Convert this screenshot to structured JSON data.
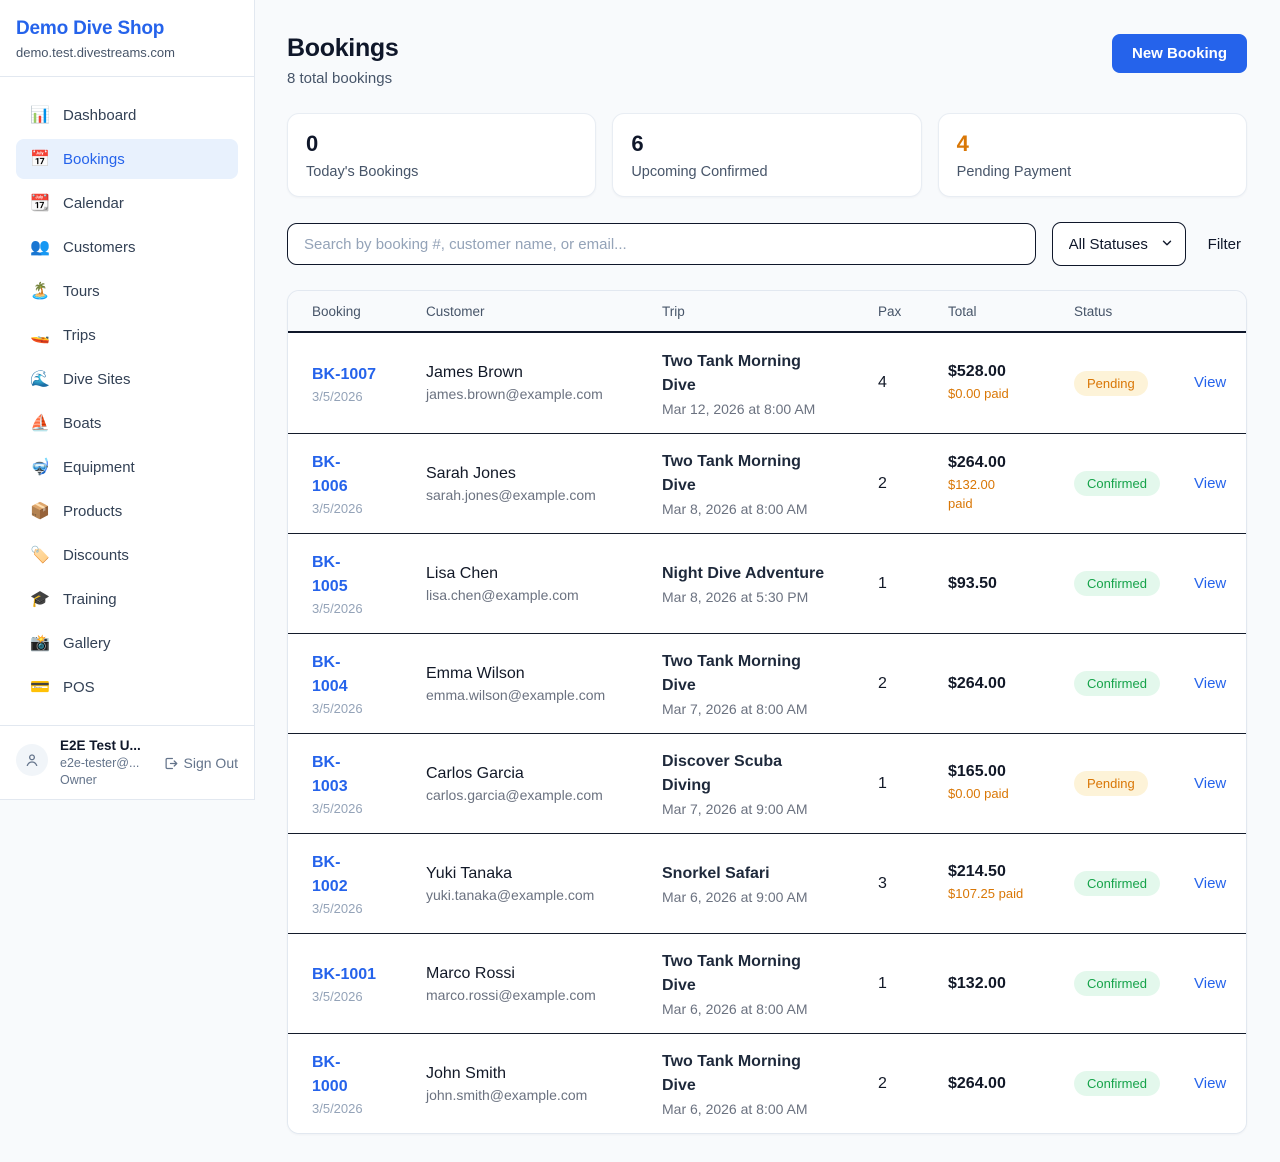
{
  "sidebar": {
    "shop_name": "Demo Dive Shop",
    "domain": "demo.test.divestreams.com",
    "items": [
      {
        "label": "Dashboard",
        "icon": "📊",
        "icon_name": "dashboard-icon",
        "active": false
      },
      {
        "label": "Bookings",
        "icon": "📅",
        "icon_name": "bookings-icon",
        "active": true
      },
      {
        "label": "Calendar",
        "icon": "📆",
        "icon_name": "calendar-icon",
        "active": false
      },
      {
        "label": "Customers",
        "icon": "👥",
        "icon_name": "customers-icon",
        "active": false
      },
      {
        "label": "Tours",
        "icon": "🏝️",
        "icon_name": "tours-icon",
        "active": false
      },
      {
        "label": "Trips",
        "icon": "🚤",
        "icon_name": "trips-icon",
        "active": false
      },
      {
        "label": "Dive Sites",
        "icon": "🌊",
        "icon_name": "dive-sites-icon",
        "active": false
      },
      {
        "label": "Boats",
        "icon": "⛵",
        "icon_name": "boats-icon",
        "active": false
      },
      {
        "label": "Equipment",
        "icon": "🤿",
        "icon_name": "equipment-icon",
        "active": false
      },
      {
        "label": "Products",
        "icon": "📦",
        "icon_name": "products-icon",
        "active": false
      },
      {
        "label": "Discounts",
        "icon": "🏷️",
        "icon_name": "discounts-icon",
        "active": false
      },
      {
        "label": "Training",
        "icon": "🎓",
        "icon_name": "training-icon",
        "active": false
      },
      {
        "label": "Gallery",
        "icon": "📸",
        "icon_name": "gallery-icon",
        "active": false
      },
      {
        "label": "POS",
        "icon": "💳",
        "icon_name": "pos-icon",
        "active": false
      }
    ],
    "user": {
      "name": "E2E Test U...",
      "email": "e2e-tester@...",
      "role": "Owner",
      "sign_out": "Sign Out"
    }
  },
  "header": {
    "title": "Bookings",
    "subtitle": "8 total bookings",
    "new_booking": "New Booking"
  },
  "stats": [
    {
      "value": "0",
      "label": "Today's Bookings"
    },
    {
      "value": "6",
      "label": "Upcoming Confirmed"
    },
    {
      "value": "4",
      "label": "Pending Payment"
    }
  ],
  "controls": {
    "search_placeholder": "Search by booking #, customer name, or email...",
    "status_filter": "All Statuses",
    "filter_label": "Filter"
  },
  "table": {
    "columns": [
      "Booking",
      "Customer",
      "Trip",
      "Pax",
      "Total",
      "Status"
    ],
    "view_label": "View",
    "rows": [
      {
        "id": "BK-1007",
        "date": "3/5/2026",
        "customer": "James Brown",
        "email": "james.brown@example.com",
        "trip": "Two Tank Morning\nDive",
        "trip_time": "Mar 12, 2026 at 8:00 AM",
        "pax": "4",
        "total": "$528.00",
        "paid": "$0.00 paid",
        "status": "Pending"
      },
      {
        "id": "BK-\n1006",
        "date": "3/5/2026",
        "customer": "Sarah Jones",
        "email": "sarah.jones@example.com",
        "trip": "Two Tank Morning\nDive",
        "trip_time": "Mar 8, 2026 at 8:00 AM",
        "pax": "2",
        "total": "$264.00",
        "paid": "$132.00\npaid",
        "status": "Confirmed"
      },
      {
        "id": "BK-\n1005",
        "date": "3/5/2026",
        "customer": "Lisa Chen",
        "email": "lisa.chen@example.com",
        "trip": "Night Dive Adventure",
        "trip_time": "Mar 8, 2026 at 5:30 PM",
        "pax": "1",
        "total": "$93.50",
        "paid": "",
        "status": "Confirmed"
      },
      {
        "id": "BK-\n1004",
        "date": "3/5/2026",
        "customer": "Emma Wilson",
        "email": "emma.wilson@example.com",
        "trip": "Two Tank Morning\nDive",
        "trip_time": "Mar 7, 2026 at 8:00 AM",
        "pax": "2",
        "total": "$264.00",
        "paid": "",
        "status": "Confirmed"
      },
      {
        "id": "BK-\n1003",
        "date": "3/5/2026",
        "customer": "Carlos Garcia",
        "email": "carlos.garcia@example.com",
        "trip": "Discover Scuba\nDiving",
        "trip_time": "Mar 7, 2026 at 9:00 AM",
        "pax": "1",
        "total": "$165.00",
        "paid": "$0.00 paid",
        "status": "Pending"
      },
      {
        "id": "BK-\n1002",
        "date": "3/5/2026",
        "customer": "Yuki Tanaka",
        "email": "yuki.tanaka@example.com",
        "trip": "Snorkel Safari",
        "trip_time": "Mar 6, 2026 at 9:00 AM",
        "pax": "3",
        "total": "$214.50",
        "paid": "$107.25 paid",
        "status": "Confirmed"
      },
      {
        "id": "BK-1001",
        "date": "3/5/2026",
        "customer": "Marco Rossi",
        "email": "marco.rossi@example.com",
        "trip": "Two Tank Morning\nDive",
        "trip_time": "Mar 6, 2026 at 8:00 AM",
        "pax": "1",
        "total": "$132.00",
        "paid": "",
        "status": "Confirmed"
      },
      {
        "id": "BK-\n1000",
        "date": "3/5/2026",
        "customer": "John Smith",
        "email": "john.smith@example.com",
        "trip": "Two Tank Morning\nDive",
        "trip_time": "Mar 6, 2026 at 8:00 AM",
        "pax": "2",
        "total": "$264.00",
        "paid": "",
        "status": "Confirmed"
      }
    ]
  },
  "colors": {
    "accent": "#2563eb",
    "pending": "#d97706",
    "confirmed": "#16a34a"
  }
}
